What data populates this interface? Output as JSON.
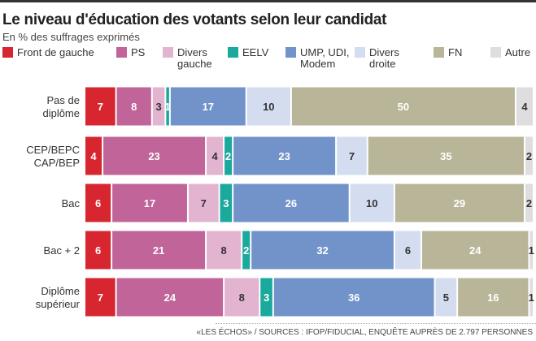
{
  "title": "Le niveau d'éducation des votants selon leur candidat",
  "subtitle": "En % des suffrages exprimés",
  "source": "«LES ÉCHOS» / SOURCES : IFOP/FIDUCIAL, ENQUÊTE AUPRÈS DE 2.797 PERSONNES",
  "chart_data": {
    "type": "bar",
    "orientation": "horizontal-stacked",
    "xlim": [
      0,
      100
    ],
    "categories": [
      "Pas de\ndiplôme",
      "CEP/BEPC\nCAP/BEP",
      "Bac",
      "Bac + 2",
      "Diplôme\nsupérieur"
    ],
    "series": [
      {
        "name": "Front de gauche",
        "color": "#d7262f",
        "values": [
          7,
          4,
          6,
          6,
          7
        ]
      },
      {
        "name": "PS",
        "color": "#c0649a",
        "values": [
          8,
          23,
          17,
          21,
          24
        ]
      },
      {
        "name": "Divers gauche",
        "color": "#e3b4cf",
        "values": [
          3,
          4,
          7,
          8,
          8
        ]
      },
      {
        "name": "EELV",
        "color": "#1aa99c",
        "values": [
          1,
          2,
          3,
          2,
          3
        ]
      },
      {
        "name": "UMP, UDI, Modem",
        "color": "#7193ca",
        "values": [
          17,
          23,
          26,
          32,
          36
        ]
      },
      {
        "name": "Divers droite",
        "color": "#d4dcef",
        "values": [
          10,
          7,
          10,
          6,
          5
        ]
      },
      {
        "name": "FN",
        "color": "#b9b598",
        "values": [
          50,
          35,
          29,
          24,
          16
        ]
      },
      {
        "name": "Autre",
        "color": "#dedede",
        "values": [
          4,
          2,
          2,
          1,
          1
        ]
      }
    ],
    "legend_labels": [
      "Front de gauche",
      "PS",
      "Divers\ngauche",
      "EELV",
      "UMP, UDI,\nModem",
      "Divers\ndroite",
      "FN",
      "Autre"
    ],
    "legend_position": "top"
  }
}
